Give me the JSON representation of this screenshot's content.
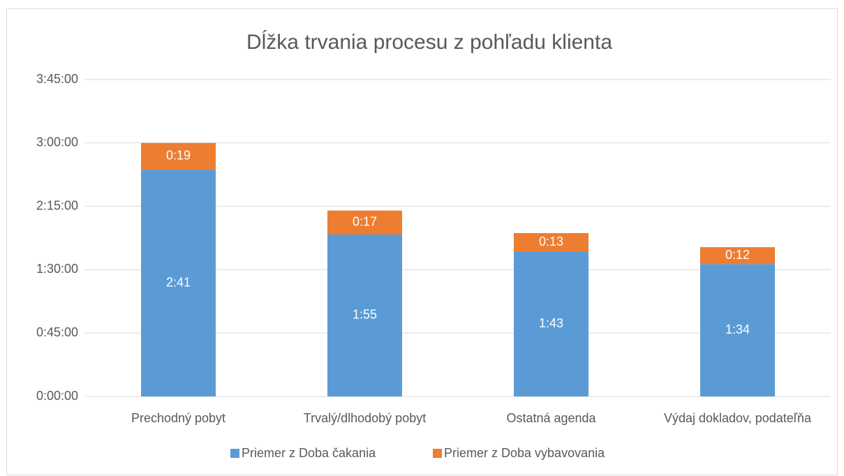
{
  "chart_data": {
    "type": "stacked_bar",
    "title": "Dĺžka trvania procesu z pohľadu klienta",
    "categories": [
      "Prechodný pobyt",
      "Trvalý/dlhodobý pobyt",
      "Ostatná agenda",
      "Výdaj dokladov, podateľňa"
    ],
    "series": [
      {
        "name": "Priemer z Doba čakania",
        "color": "#5b9bd5",
        "values": [
          161,
          115,
          103,
          94
        ],
        "value_labels": [
          "2:41",
          "1:55",
          "1:43",
          "1:34"
        ]
      },
      {
        "name": "Priemer z Doba vybavovania",
        "color": "#ed7d31",
        "values": [
          19,
          17,
          13,
          12
        ],
        "value_labels": [
          "0:19",
          "0:17",
          "0:13",
          "0:12"
        ]
      }
    ],
    "ylim": [
      0,
      225
    ],
    "yticks": [
      {
        "value": 0,
        "label": "0:00:00"
      },
      {
        "value": 45,
        "label": "0:45:00"
      },
      {
        "value": 90,
        "label": "1:30:00"
      },
      {
        "value": 135,
        "label": "2:15:00"
      },
      {
        "value": 180,
        "label": "3:00:00"
      },
      {
        "value": 225,
        "label": "3:45:00"
      }
    ],
    "grid": true,
    "legend": "bottom"
  }
}
